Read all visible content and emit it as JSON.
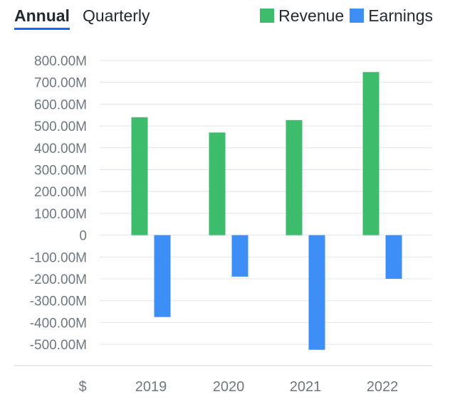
{
  "tabs": [
    {
      "label": "Annual",
      "active": true
    },
    {
      "label": "Quarterly",
      "active": false
    }
  ],
  "legend": [
    {
      "label": "Revenue",
      "color": "#3dbd6b"
    },
    {
      "label": "Earnings",
      "color": "#3e8ef7"
    }
  ],
  "currency_symbol": "$",
  "chart_data": {
    "type": "bar",
    "categories": [
      "2019",
      "2020",
      "2021",
      "2022"
    ],
    "series": [
      {
        "name": "Revenue",
        "color": "#3dbd6b",
        "values": [
          540000000,
          470000000,
          527000000,
          747000000
        ]
      },
      {
        "name": "Earnings",
        "color": "#3e8ef7",
        "values": [
          -375000000,
          -190000000,
          -525000000,
          -200000000
        ]
      }
    ],
    "y_ticks": [
      {
        "value": 800000000,
        "label": "800.00M"
      },
      {
        "value": 700000000,
        "label": "700.00M"
      },
      {
        "value": 600000000,
        "label": "600.00M"
      },
      {
        "value": 500000000,
        "label": "500.00M"
      },
      {
        "value": 400000000,
        "label": "400.00M"
      },
      {
        "value": 300000000,
        "label": "300.00M"
      },
      {
        "value": 200000000,
        "label": "200.00M"
      },
      {
        "value": 100000000,
        "label": "100.00M"
      },
      {
        "value": 0,
        "label": "0"
      },
      {
        "value": -100000000,
        "label": "-100.00M"
      },
      {
        "value": -200000000,
        "label": "-200.00M"
      },
      {
        "value": -300000000,
        "label": "-300.00M"
      },
      {
        "value": -400000000,
        "label": "-400.00M"
      },
      {
        "value": -500000000,
        "label": "-500.00M"
      }
    ],
    "ylim": [
      -600000000,
      800000000
    ],
    "grid": true,
    "legend_position": "top-right",
    "title": "",
    "xlabel": "",
    "ylabel": ""
  }
}
